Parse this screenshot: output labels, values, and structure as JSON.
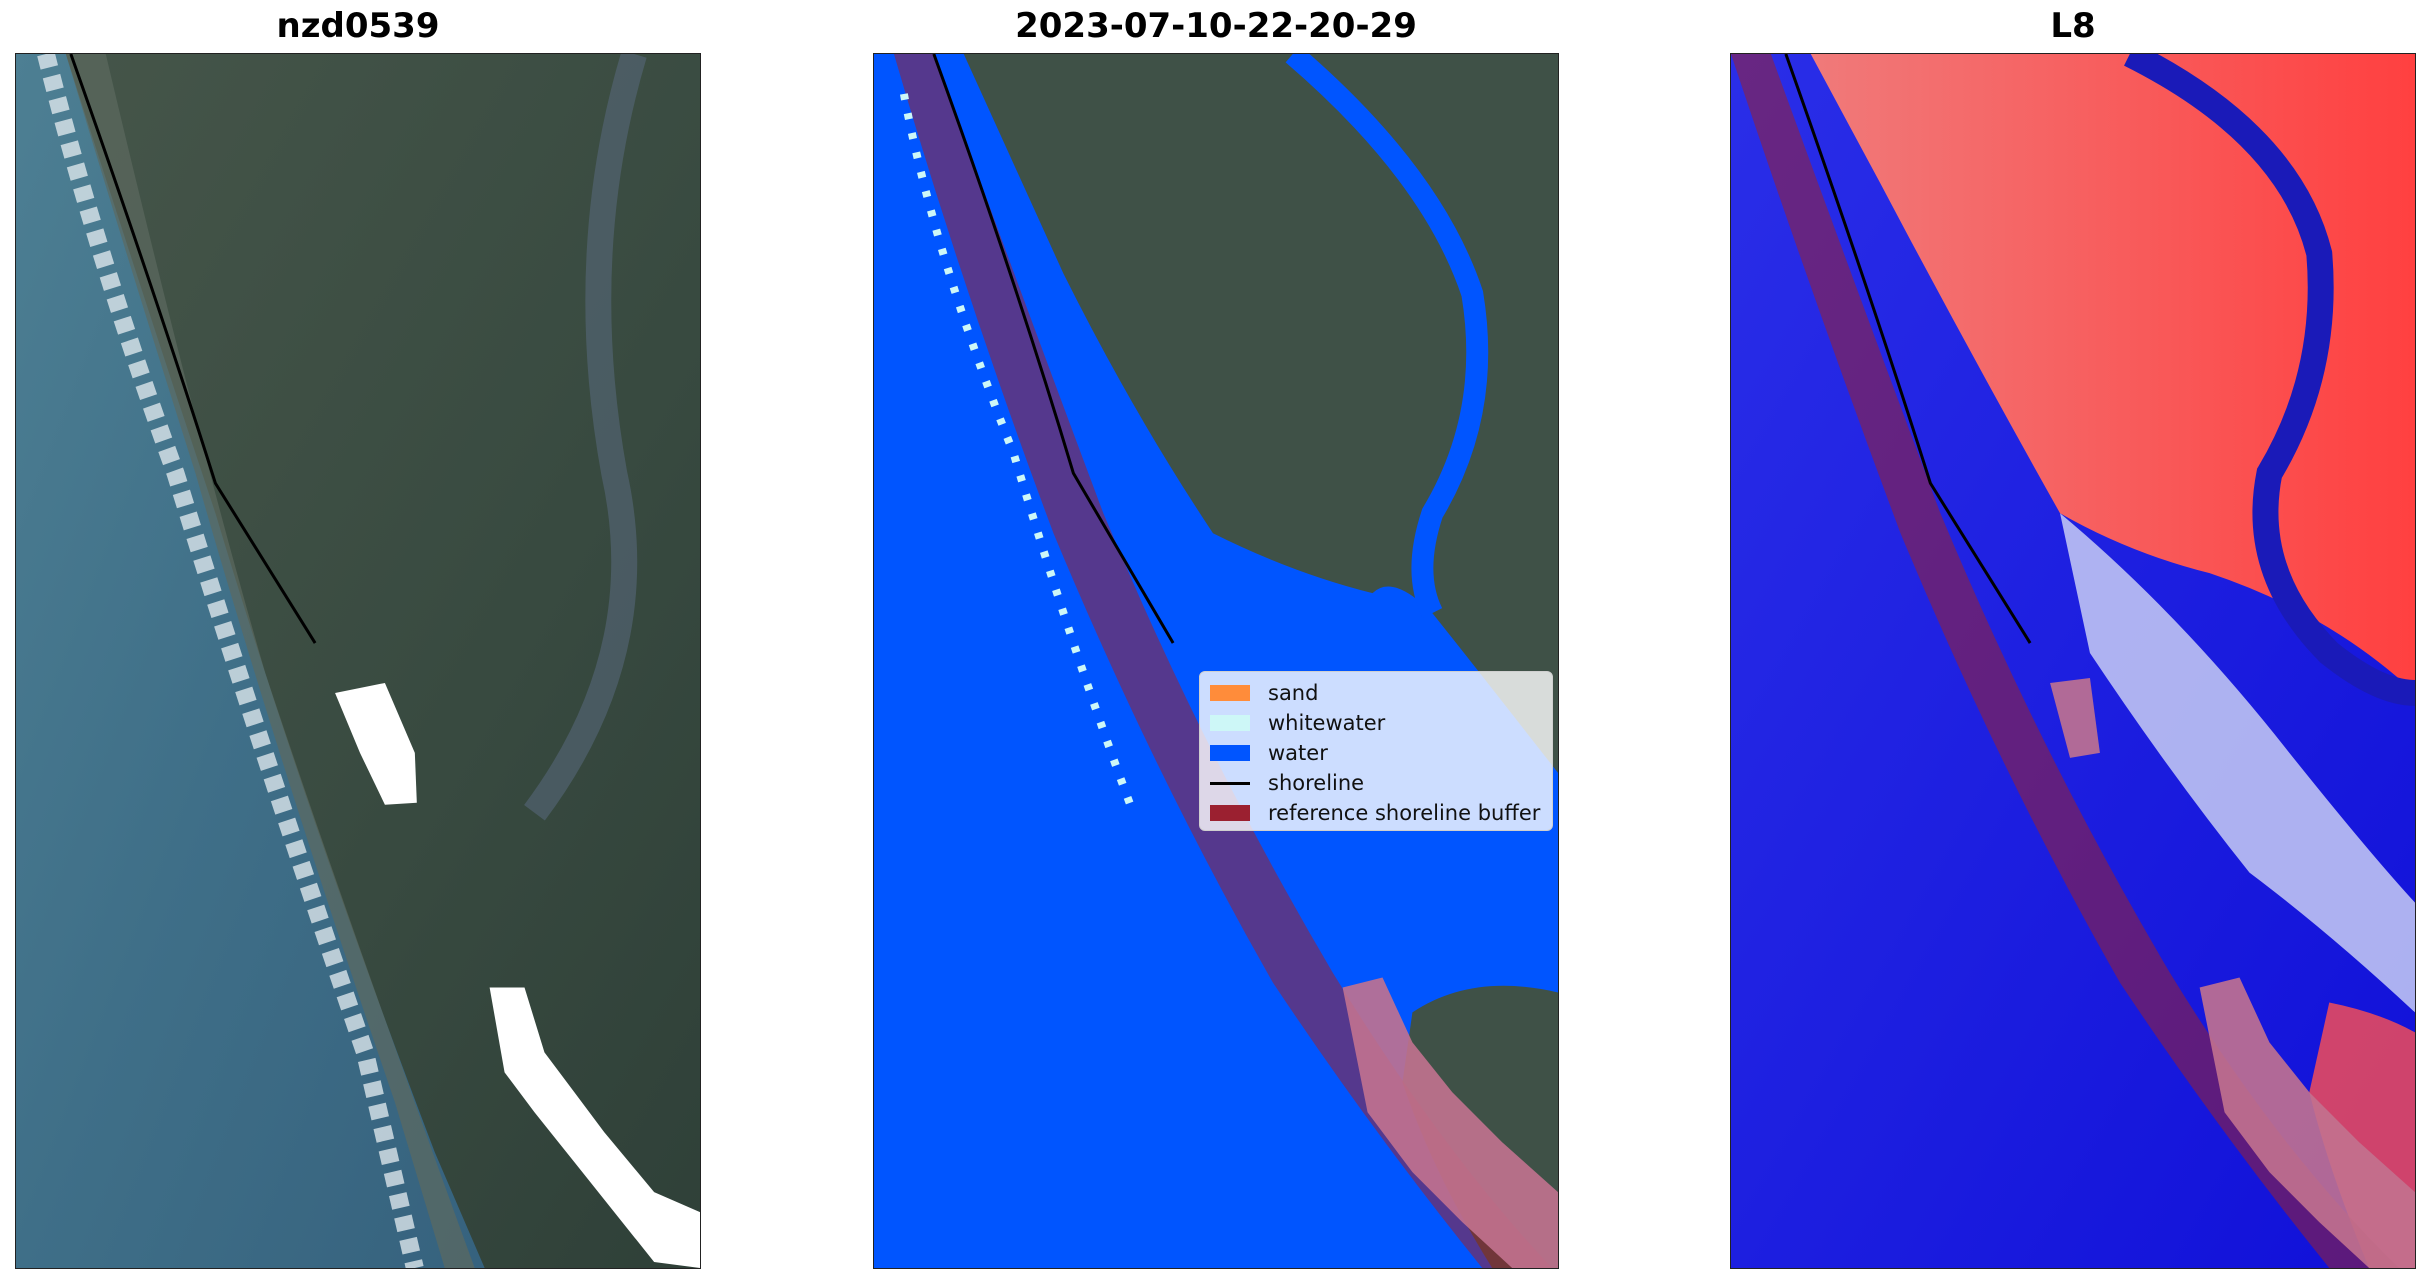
{
  "panels": [
    {
      "title": "nzd0539"
    },
    {
      "title": "2023-07-10-22-20-29"
    },
    {
      "title": "L8"
    }
  ],
  "legend": {
    "items": [
      {
        "label": "sand",
        "color": "#ff8c3a"
      },
      {
        "label": "whitewater",
        "color": "#cdf7f7"
      },
      {
        "label": "water",
        "color": "#0055ff"
      },
      {
        "label": "shoreline",
        "color": "#000000"
      },
      {
        "label": "reference shoreline buffer",
        "color": "#9b2030"
      }
    ]
  },
  "colors": {
    "ocean": "#3f6f88",
    "land": "#3d4f42",
    "classified_water": "#0055ff",
    "index_high": "#ff3b3b",
    "index_low": "#1414e6",
    "buffer": "#9b2030",
    "nodata": "#ffffff"
  }
}
